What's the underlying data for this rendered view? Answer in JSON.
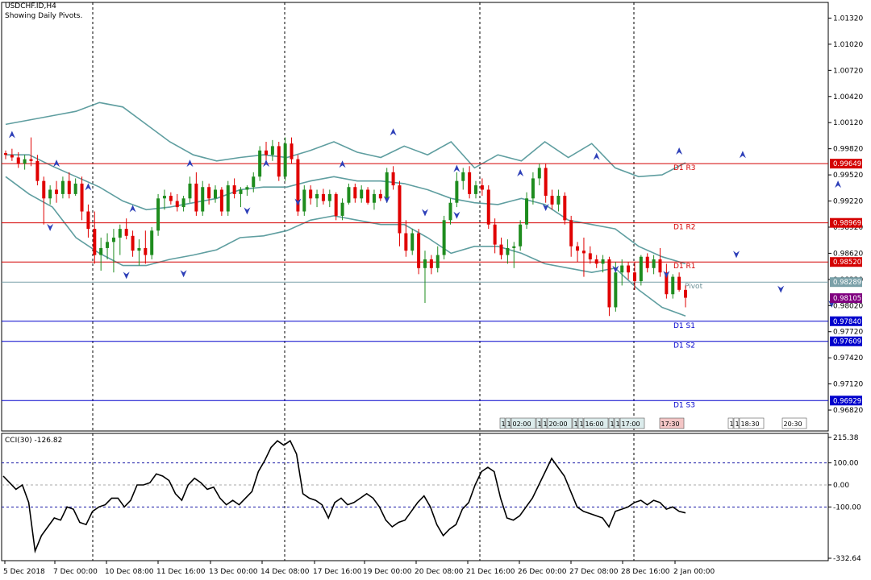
{
  "window": {
    "symbol_line": "USDCHF.ID,H4",
    "subtitle": "Showing Daily Pivots."
  },
  "price_axis": {
    "min": 0.9658,
    "max": 1.015,
    "ticks": [
      "1.01320",
      "1.01020",
      "1.00720",
      "1.00420",
      "1.00120",
      "0.99820",
      "0.99520",
      "0.99220",
      "0.98920",
      "0.98620",
      "0.98320",
      "0.98020",
      "0.97720",
      "0.97420",
      "0.97120",
      "0.96820"
    ]
  },
  "levels": [
    {
      "label": "D1  R3",
      "value": 0.99649,
      "value_text": "0.99649",
      "color": "#d40000"
    },
    {
      "label": "D1  R2",
      "value": 0.98969,
      "value_text": "0.98969",
      "color": "#d40000"
    },
    {
      "label": "D1  R1",
      "value": 0.9852,
      "value_text": "0.98520",
      "color": "#d40000"
    },
    {
      "label": "Pivot",
      "value": 0.98289,
      "value_text": "0.98289",
      "color": "#7aa0a8"
    },
    {
      "label": "D1  S1",
      "value": 0.9784,
      "value_text": "0.97840",
      "color": "#0000cc"
    },
    {
      "label": "D1  S2",
      "value": 0.97609,
      "value_text": "0.97609",
      "color": "#0000cc"
    },
    {
      "label": "D1  S3",
      "value": 0.96929,
      "value_text": "0.96929",
      "color": "#0000cc"
    }
  ],
  "current_price": {
    "value": 0.98105,
    "value_text": "0.98105",
    "color": "#800080"
  },
  "candles": [
    [
      0.9977,
      0.998,
      0.997,
      0.9975
    ],
    [
      0.9975,
      0.9982,
      0.9968,
      0.9972
    ],
    [
      0.9972,
      0.9978,
      0.996,
      0.9965
    ],
    [
      0.9965,
      0.9975,
      0.9958,
      0.997
    ],
    [
      0.997,
      0.9995,
      0.9962,
      0.9968
    ],
    [
      0.9968,
      0.9975,
      0.994,
      0.9945
    ],
    [
      0.9945,
      0.995,
      0.9895,
      0.9925
    ],
    [
      0.9925,
      0.994,
      0.9918,
      0.9935
    ],
    [
      0.9935,
      0.9945,
      0.992,
      0.993
    ],
    [
      0.993,
      0.995,
      0.9925,
      0.9945
    ],
    [
      0.9945,
      0.9955,
      0.9925,
      0.993
    ],
    [
      0.993,
      0.9948,
      0.9928,
      0.9942
    ],
    [
      0.9942,
      0.995,
      0.99,
      0.991
    ],
    [
      0.991,
      0.9918,
      0.988,
      0.989
    ],
    [
      0.989,
      0.991,
      0.985,
      0.986
    ],
    [
      0.986,
      0.988,
      0.9842,
      0.9868
    ],
    [
      0.9868,
      0.9885,
      0.9855,
      0.9875
    ],
    [
      0.9875,
      0.989,
      0.984,
      0.988
    ],
    [
      0.988,
      0.9895,
      0.986,
      0.989
    ],
    [
      0.989,
      0.9902,
      0.9878,
      0.9882
    ],
    [
      0.9882,
      0.9888,
      0.9858,
      0.9865
    ],
    [
      0.9865,
      0.9878,
      0.9848,
      0.9868
    ],
    [
      0.9868,
      0.9888,
      0.985,
      0.986
    ],
    [
      0.986,
      0.9892,
      0.9855,
      0.9888
    ],
    [
      0.9888,
      0.993,
      0.9882,
      0.9925
    ],
    [
      0.9925,
      0.9935,
      0.9912,
      0.9928
    ],
    [
      0.9928,
      0.9932,
      0.9918,
      0.9922
    ],
    [
      0.9922,
      0.993,
      0.991,
      0.9915
    ],
    [
      0.9915,
      0.9928,
      0.991,
      0.9925
    ],
    [
      0.9925,
      0.995,
      0.992,
      0.9942
    ],
    [
      0.9942,
      0.9955,
      0.9905,
      0.991
    ],
    [
      0.991,
      0.9945,
      0.9905,
      0.9938
    ],
    [
      0.9938,
      0.9942,
      0.9918,
      0.9925
    ],
    [
      0.9925,
      0.994,
      0.992,
      0.9935
    ],
    [
      0.9935,
      0.9938,
      0.9905,
      0.991
    ],
    [
      0.991,
      0.9945,
      0.9905,
      0.994
    ],
    [
      0.994,
      0.9948,
      0.9925,
      0.993
    ],
    [
      0.993,
      0.9938,
      0.9915,
      0.9935
    ],
    [
      0.9935,
      0.994,
      0.9928,
      0.9938
    ],
    [
      0.9938,
      0.9955,
      0.9932,
      0.995
    ],
    [
      0.995,
      0.9985,
      0.9945,
      0.998
    ],
    [
      0.998,
      0.999,
      0.9965,
      0.9975
    ],
    [
      0.9975,
      0.9992,
      0.9968,
      0.9985
    ],
    [
      0.9985,
      0.999,
      0.9945,
      0.995
    ],
    [
      0.995,
      0.9995,
      0.9945,
      0.9988
    ],
    [
      0.9988,
      0.9995,
      0.9965,
      0.997
    ],
    [
      0.997,
      0.9975,
      0.9905,
      0.991
    ],
    [
      0.991,
      0.994,
      0.9905,
      0.9935
    ],
    [
      0.9935,
      0.994,
      0.9918,
      0.9925
    ],
    [
      0.9925,
      0.9935,
      0.9915,
      0.993
    ],
    [
      0.993,
      0.9936,
      0.9918,
      0.9922
    ],
    [
      0.9922,
      0.9935,
      0.9915,
      0.993
    ],
    [
      0.993,
      0.9932,
      0.99,
      0.9905
    ],
    [
      0.9905,
      0.9925,
      0.99,
      0.992
    ],
    [
      0.992,
      0.9942,
      0.9918,
      0.9938
    ],
    [
      0.9938,
      0.9942,
      0.992,
      0.9925
    ],
    [
      0.9925,
      0.994,
      0.992,
      0.9935
    ],
    [
      0.9935,
      0.9938,
      0.9918,
      0.992
    ],
    [
      0.992,
      0.9935,
      0.9912,
      0.993
    ],
    [
      0.993,
      0.9935,
      0.9922,
      0.9925
    ],
    [
      0.9925,
      0.996,
      0.992,
      0.9955
    ],
    [
      0.9955,
      0.9962,
      0.9935,
      0.994
    ],
    [
      0.994,
      0.9945,
      0.987,
      0.9885
    ],
    [
      0.9885,
      0.99,
      0.9858,
      0.9865
    ],
    [
      0.9865,
      0.989,
      0.986,
      0.9885
    ],
    [
      0.9885,
      0.989,
      0.9838,
      0.9845
    ],
    [
      0.9845,
      0.9865,
      0.9805,
      0.9855
    ],
    [
      0.9855,
      0.986,
      0.9838,
      0.9845
    ],
    [
      0.9845,
      0.987,
      0.984,
      0.986
    ],
    [
      0.986,
      0.9905,
      0.9855,
      0.99
    ],
    [
      0.99,
      0.9925,
      0.9895,
      0.992
    ],
    [
      0.992,
      0.9955,
      0.9915,
      0.9945
    ],
    [
      0.9945,
      0.996,
      0.9935,
      0.9955
    ],
    [
      0.9955,
      0.9962,
      0.9925,
      0.993
    ],
    [
      0.993,
      0.9945,
      0.9925,
      0.994
    ],
    [
      0.994,
      0.9948,
      0.9928,
      0.9935
    ],
    [
      0.9935,
      0.994,
      0.989,
      0.9895
    ],
    [
      0.9895,
      0.9902,
      0.9862,
      0.9872
    ],
    [
      0.9872,
      0.988,
      0.9855,
      0.986
    ],
    [
      0.986,
      0.9878,
      0.985,
      0.9868
    ],
    [
      0.9868,
      0.9875,
      0.9845,
      0.987
    ],
    [
      0.987,
      0.99,
      0.9865,
      0.9895
    ],
    [
      0.9895,
      0.9932,
      0.989,
      0.9925
    ],
    [
      0.9925,
      0.9955,
      0.9918,
      0.9948
    ],
    [
      0.9948,
      0.9965,
      0.994,
      0.996
    ],
    [
      0.996,
      0.9965,
      0.992,
      0.9928
    ],
    [
      0.9928,
      0.9935,
      0.9912,
      0.9918
    ],
    [
      0.9918,
      0.9935,
      0.991,
      0.9928
    ],
    [
      0.9928,
      0.9932,
      0.9895,
      0.99
    ],
    [
      0.99,
      0.9905,
      0.9858,
      0.987
    ],
    [
      0.987,
      0.9875,
      0.9852,
      0.9865
    ],
    [
      0.9865,
      0.988,
      0.9835,
      0.9862
    ],
    [
      0.9862,
      0.987,
      0.985,
      0.9855
    ],
    [
      0.9855,
      0.986,
      0.9845,
      0.985
    ],
    [
      0.985,
      0.986,
      0.984,
      0.9855
    ],
    [
      0.9855,
      0.9858,
      0.979,
      0.98
    ],
    [
      0.98,
      0.9852,
      0.9795,
      0.984
    ],
    [
      0.984,
      0.9855,
      0.9825,
      0.9848
    ],
    [
      0.9848,
      0.9852,
      0.9832,
      0.984
    ],
    [
      0.984,
      0.9852,
      0.982,
      0.983
    ],
    [
      0.983,
      0.986,
      0.9825,
      0.9858
    ],
    [
      0.9858,
      0.9862,
      0.984,
      0.9845
    ],
    [
      0.9845,
      0.986,
      0.9838,
      0.9855
    ],
    [
      0.9855,
      0.9868,
      0.9835,
      0.984
    ],
    [
      0.984,
      0.985,
      0.981,
      0.9815
    ],
    [
      0.9815,
      0.9838,
      0.981,
      0.9835
    ],
    [
      0.9835,
      0.984,
      0.9818,
      0.982
    ],
    [
      0.982,
      0.9825,
      0.98,
      0.9811
    ]
  ],
  "bollinger": {
    "upper": [
      1.001,
      1.0015,
      1.002,
      1.0025,
      1.0035,
      1.003,
      1.001,
      0.999,
      0.9975,
      0.9968,
      0.9972,
      0.9975,
      0.9972,
      0.998,
      0.999,
      0.9978,
      0.9972,
      0.9985,
      0.9975,
      0.999,
      0.996,
      0.9975,
      0.9968,
      0.999,
      0.9972,
      0.9988,
      0.996,
      0.995,
      0.9952,
      0.9966
    ],
    "middle": [
      0.9975,
      0.9975,
      0.9962,
      0.995,
      0.9938,
      0.9922,
      0.9912,
      0.9915,
      0.992,
      0.9925,
      0.9935,
      0.9938,
      0.9938,
      0.9945,
      0.995,
      0.9945,
      0.9945,
      0.9942,
      0.9935,
      0.9925,
      0.992,
      0.9918,
      0.9925,
      0.9918,
      0.99,
      0.9895,
      0.989,
      0.987,
      0.9858,
      0.985
    ],
    "lower": [
      0.995,
      0.993,
      0.9915,
      0.988,
      0.9862,
      0.9848,
      0.9848,
      0.9855,
      0.986,
      0.9866,
      0.988,
      0.9882,
      0.9888,
      0.99,
      0.9905,
      0.99,
      0.9895,
      0.9895,
      0.988,
      0.9862,
      0.987,
      0.987,
      0.9862,
      0.985,
      0.9845,
      0.984,
      0.9845,
      0.982,
      0.98,
      0.979
    ]
  },
  "fractals": {
    "up": [
      [
        1,
        0.9997
      ],
      [
        8,
        0.9964
      ],
      [
        13,
        0.9937
      ],
      [
        20,
        0.9912
      ],
      [
        29,
        0.9964
      ],
      [
        41,
        0.9964
      ],
      [
        53,
        0.9963
      ],
      [
        61,
        1.0
      ],
      [
        71,
        0.9958
      ],
      [
        81,
        0.9953
      ],
      [
        93,
        0.9972
      ],
      [
        106,
        0.9978
      ],
      [
        116,
        0.9974
      ],
      [
        131,
        0.994
      ],
      [
        141,
        0.988
      ],
      [
        151,
        0.9872
      ]
    ],
    "down": [
      [
        7,
        0.9893
      ],
      [
        19,
        0.9838
      ],
      [
        28,
        0.984
      ],
      [
        38,
        0.9912
      ],
      [
        46,
        0.9922
      ],
      [
        60,
        0.9925
      ],
      [
        66,
        0.991
      ],
      [
        71,
        0.9907
      ],
      [
        85,
        0.9916
      ],
      [
        96,
        0.9845
      ],
      [
        104,
        0.9839
      ],
      [
        115,
        0.9862
      ],
      [
        122,
        0.9822
      ],
      [
        130,
        0.9805
      ],
      [
        137,
        0.9783
      ],
      [
        151,
        0.9812
      ]
    ]
  },
  "cci": {
    "label": "CCI(30) -126.82",
    "min": -332.64,
    "max": 215.38,
    "ticks": [
      "215.38",
      "100.00",
      "0.00",
      "-100.00",
      "-332.64"
    ],
    "values": [
      40,
      10,
      -20,
      0,
      -80,
      -300,
      -230,
      -190,
      -150,
      -160,
      -100,
      -110,
      -170,
      -180,
      -120,
      -100,
      -90,
      -60,
      -60,
      -100,
      -70,
      0,
      0,
      10,
      50,
      40,
      20,
      -40,
      -70,
      0,
      30,
      10,
      -20,
      -10,
      -60,
      -90,
      -70,
      -90,
      -60,
      -30,
      60,
      110,
      170,
      200,
      180,
      200,
      140,
      -40,
      -60,
      -70,
      -90,
      -150,
      -80,
      -60,
      -90,
      -80,
      -60,
      -40,
      -60,
      -100,
      -160,
      -190,
      -170,
      -160,
      -120,
      -80,
      -50,
      -100,
      -180,
      -230,
      -200,
      -180,
      -110,
      -80,
      0,
      60,
      80,
      60,
      -60,
      -150,
      -160,
      -140,
      -100,
      -60,
      0,
      60,
      120,
      80,
      40,
      -30,
      -100,
      -120,
      -130,
      -140,
      -150,
      -190,
      -120,
      -110,
      -100,
      -80,
      -70,
      -90,
      -70,
      -80,
      -110,
      -100,
      -120,
      -126.82
    ]
  },
  "time_axis": {
    "labels": [
      "5 Dec 2018",
      "7 Dec 00:00",
      "10 Dec 08:00",
      "11 Dec 16:00",
      "13 Dec 00:00",
      "14 Dec 08:00",
      "17 Dec 16:00",
      "19 Dec 00:00",
      "20 Dec 08:00",
      "21 Dec 16:00",
      "26 Dec 00:00",
      "27 Dec 08:00",
      "28 Dec 16:00",
      "2 Jan 00:00"
    ]
  },
  "timeframe_tags": {
    "group_a": [
      "1",
      "1",
      "02:00",
      "1",
      "1",
      "20:00",
      "1",
      "1",
      "16:00",
      "1",
      "1",
      "17:00"
    ],
    "group_b": [
      "17:30"
    ],
    "group_c": [
      "1",
      "1",
      "18:30"
    ],
    "group_d": [
      "20:30"
    ]
  },
  "colors": {
    "bull": "#1e8c1e",
    "bear": "#e00000",
    "band": "#5f9ea0",
    "fractal": "#2d3fb8",
    "cci_line": "#000000",
    "pivot_tag": "#7aa0a8",
    "grid_sep": "#000000"
  }
}
